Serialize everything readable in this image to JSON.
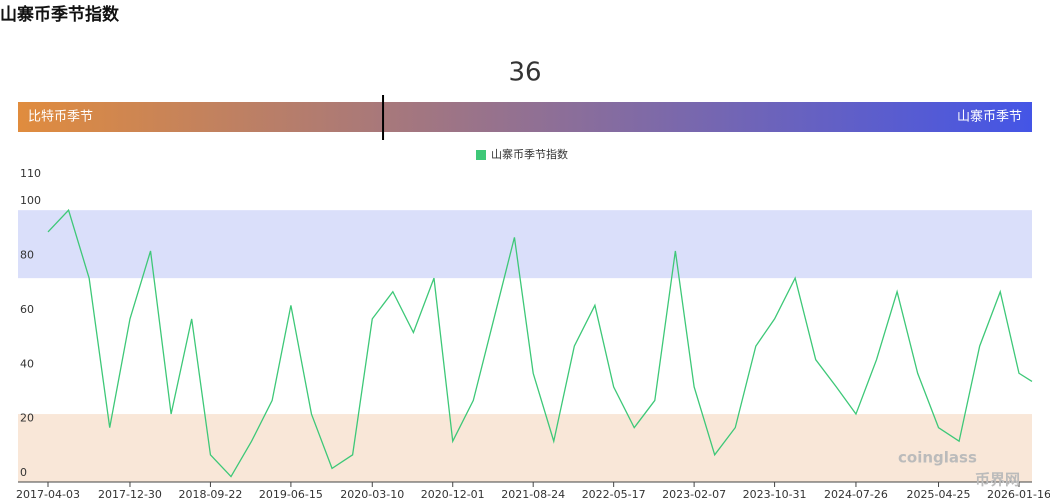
{
  "chart_data": {
    "type": "line",
    "title": "山寨币季节指数",
    "gauge": {
      "value": 36,
      "left_label": "比特币季节",
      "right_label": "山寨币季节",
      "colors": [
        "#e08c3e",
        "#4455e6"
      ]
    },
    "watermarks": [
      "coinglass",
      "币界网"
    ],
    "bands": [
      {
        "from": 75,
        "to": 100,
        "color": "#dadffa"
      },
      {
        "from": 0,
        "to": 25,
        "color": "#f9e7d8"
      }
    ],
    "x": [
      "2017-04-03",
      "2017-06-10",
      "2017-08-17",
      "2017-10-24",
      "2017-12-30",
      "2018-03-08",
      "2018-05-15",
      "2018-07-22",
      "2018-09-22",
      "2018-11-29",
      "2019-02-05",
      "2019-04-14",
      "2019-06-15",
      "2019-08-22",
      "2019-10-29",
      "2020-01-05",
      "2020-03-10",
      "2020-05-17",
      "2020-07-24",
      "2020-09-30",
      "2020-12-01",
      "2021-02-07",
      "2021-04-16",
      "2021-06-23",
      "2021-08-24",
      "2021-10-31",
      "2022-01-07",
      "2022-03-16",
      "2022-05-17",
      "2022-07-24",
      "2022-09-30",
      "2022-12-07",
      "2023-02-07",
      "2023-04-16",
      "2023-06-23",
      "2023-08-30",
      "2023-10-31",
      "2024-01-07",
      "2024-03-15",
      "2024-05-22",
      "2024-07-26",
      "2024-10-02",
      "2024-12-09",
      "2025-02-15",
      "2025-04-25",
      "2025-07-02",
      "2025-09-08",
      "2025-11-15",
      "2026-01-16",
      "2026-02-28"
    ],
    "series": [
      {
        "name": "山寨币季节指数",
        "color": "#3ec878",
        "values": [
          92,
          100,
          75,
          20,
          60,
          85,
          25,
          60,
          10,
          2,
          15,
          30,
          65,
          25,
          5,
          10,
          60,
          70,
          55,
          75,
          15,
          30,
          60,
          90,
          40,
          15,
          50,
          65,
          35,
          20,
          30,
          85,
          35,
          10,
          20,
          50,
          60,
          75,
          45,
          35,
          25,
          45,
          70,
          40,
          20,
          15,
          50,
          70,
          40,
          37
        ]
      }
    ],
    "xlim": [
      "2017-04-03",
      "2026-02-28"
    ],
    "xticks": [
      "2017-04-03",
      "2017-12-30",
      "2018-09-22",
      "2019-06-15",
      "2020-03-10",
      "2020-12-01",
      "2021-08-24",
      "2022-05-17",
      "2023-02-07",
      "2023-10-31",
      "2024-07-26",
      "2025-04-25",
      "2026-01-16"
    ],
    "ylim": [
      0,
      110
    ],
    "yticks": [
      0,
      20,
      40,
      60,
      80,
      100,
      110
    ],
    "legend": "top"
  }
}
